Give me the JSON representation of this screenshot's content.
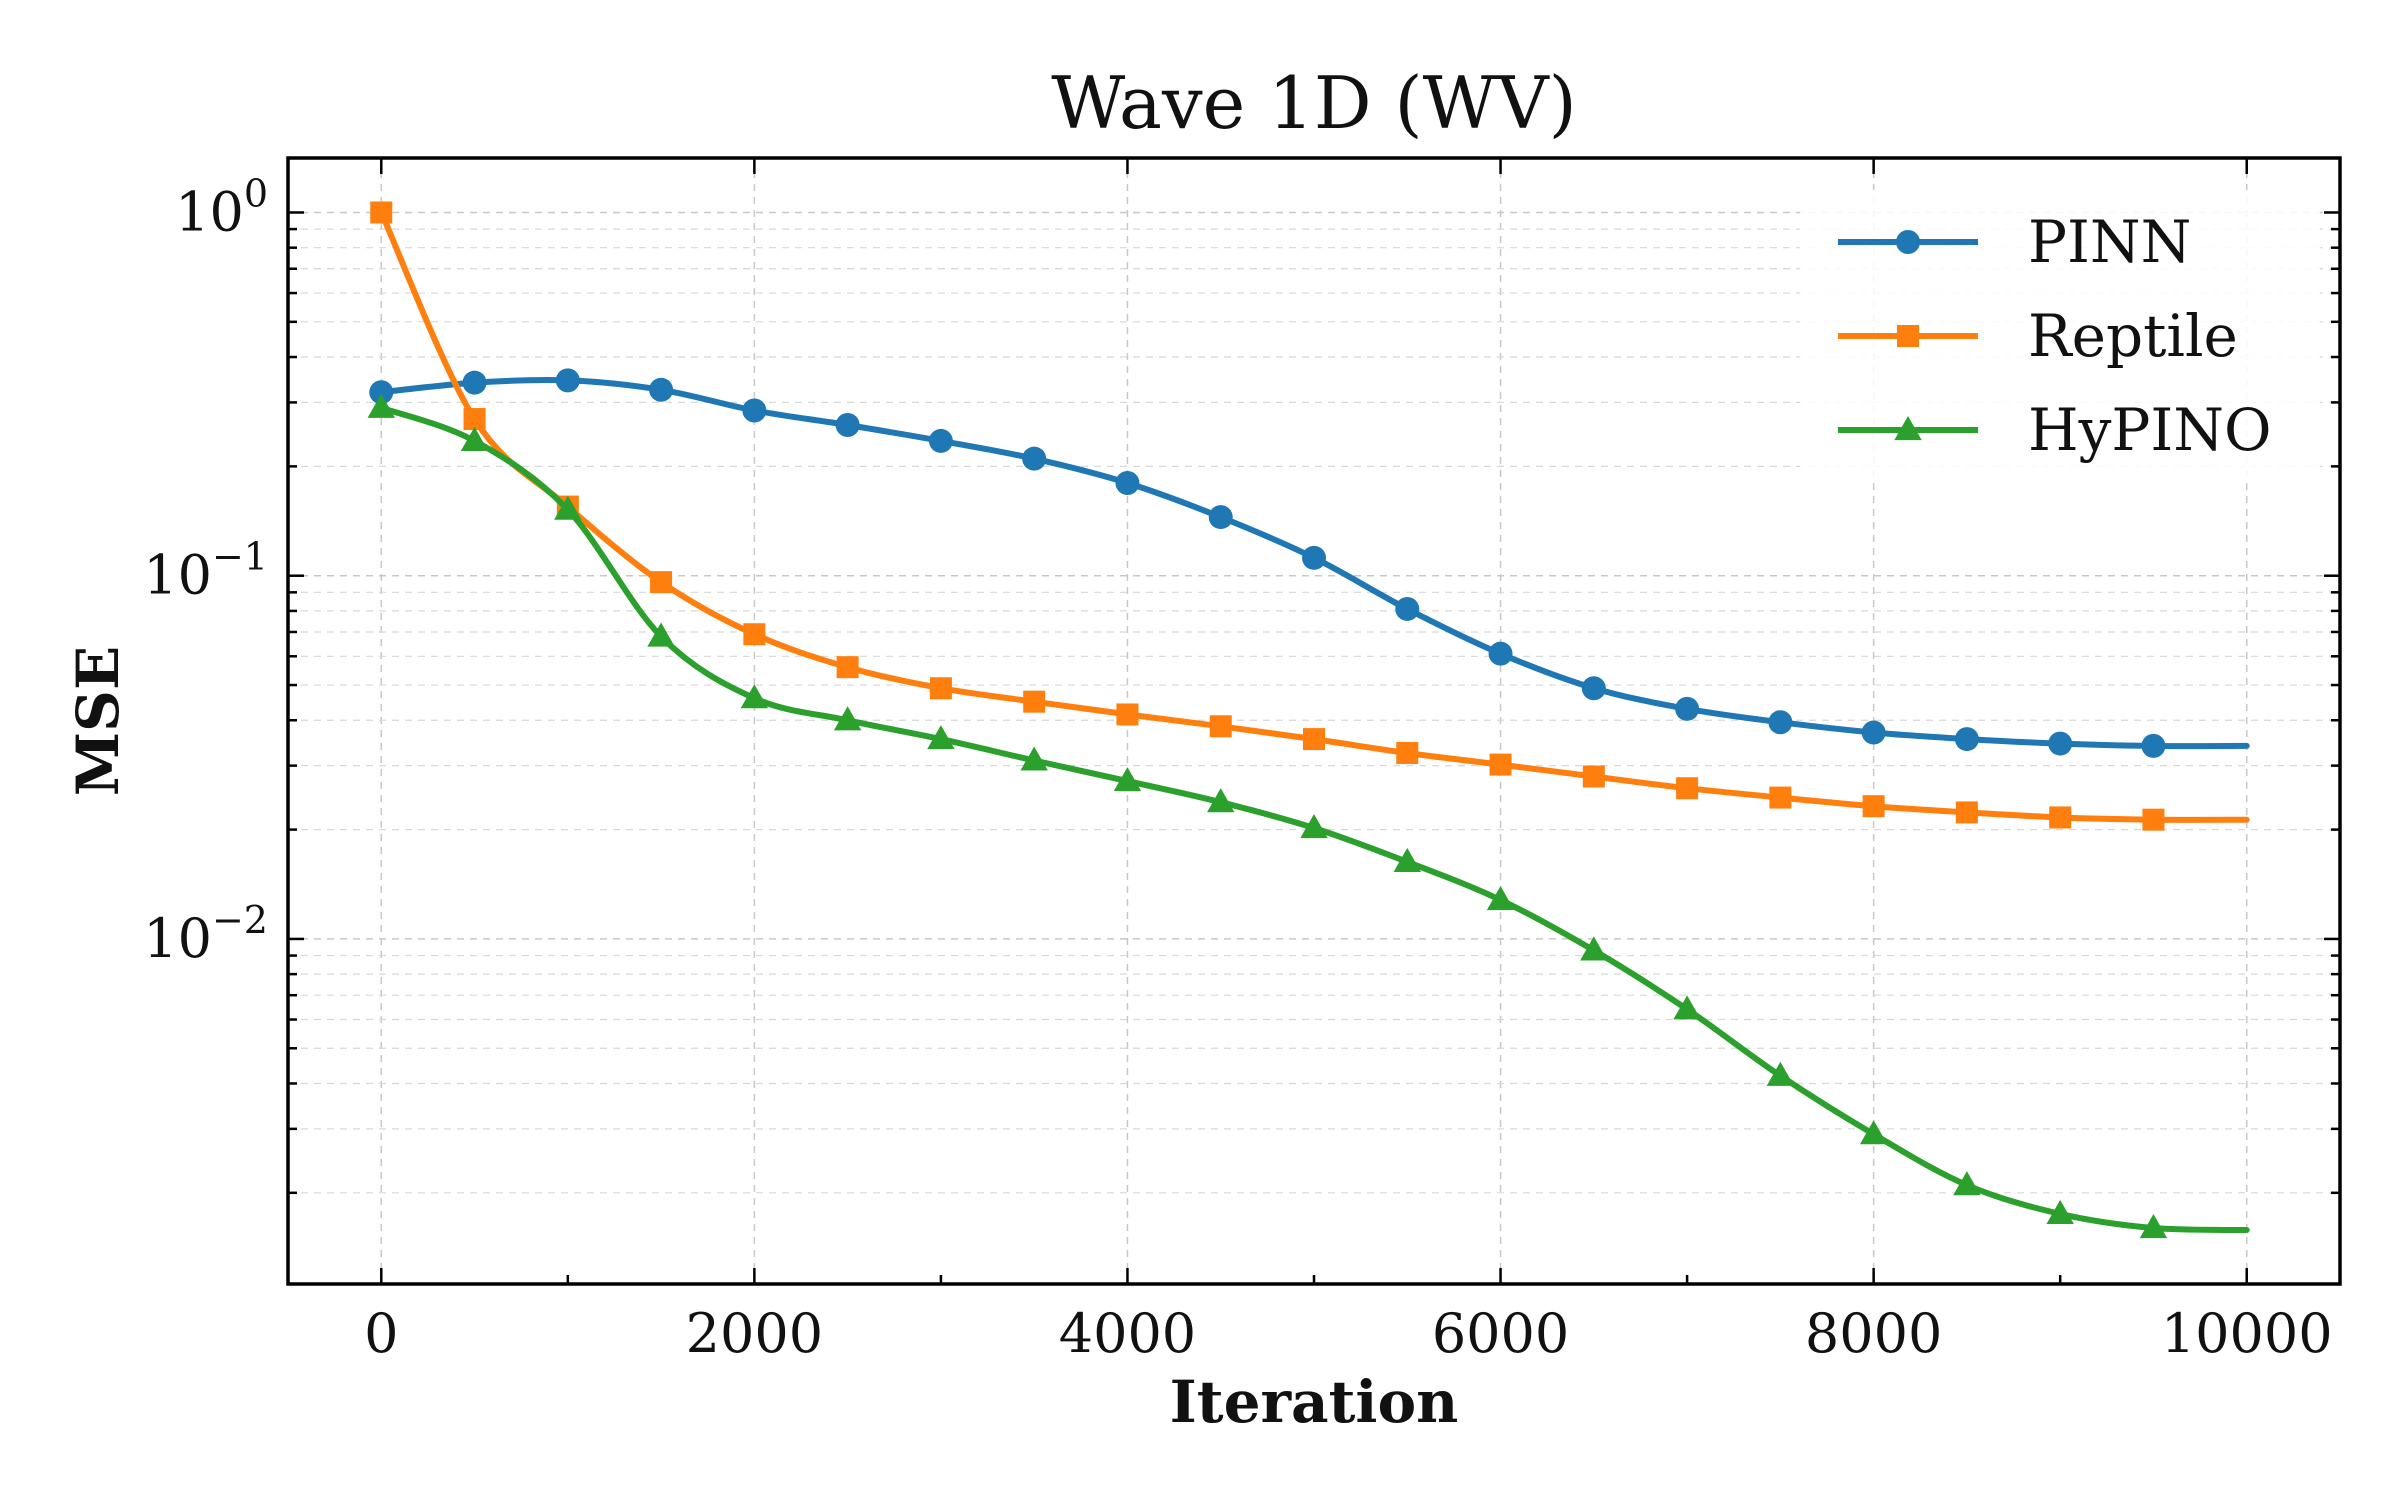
{
  "chart_data": {
    "type": "line",
    "title": "Wave 1D (WV)",
    "xlabel": "Iteration",
    "ylabel": "MSE",
    "xlim": [
      -500,
      10500
    ],
    "ylim_log10": [
      -2.95,
      0.15
    ],
    "yscale": "log",
    "grid": true,
    "legend_position": "top-right",
    "x_ticks": [
      0,
      2000,
      4000,
      6000,
      8000,
      10000
    ],
    "x_tick_labels": [
      "0",
      "2000",
      "4000",
      "6000",
      "8000",
      "10000"
    ],
    "y_ticks": [
      {
        "value": 1,
        "base": "10",
        "exp": "0"
      },
      {
        "value": 0.1,
        "base": "10",
        "exp": "−1"
      },
      {
        "value": 0.01,
        "base": "10",
        "exp": "−2"
      }
    ],
    "x": [
      0,
      500,
      1000,
      1500,
      2000,
      2500,
      3000,
      3500,
      4000,
      4500,
      5000,
      5500,
      6000,
      6500,
      7000,
      7500,
      8000,
      8500,
      9000,
      9500,
      10000
    ],
    "marker_count": 20,
    "series": [
      {
        "name": "PINN",
        "color": "#1f77b4",
        "marker": "circle",
        "values": [
          0.32,
          0.34,
          0.345,
          0.325,
          0.285,
          0.26,
          0.235,
          0.21,
          0.18,
          0.145,
          0.112,
          0.081,
          0.061,
          0.049,
          0.043,
          0.0395,
          0.037,
          0.0355,
          0.0345,
          0.034,
          0.034
        ]
      },
      {
        "name": "Reptile",
        "color": "#ff7f0e",
        "marker": "square",
        "values": [
          1.0,
          0.27,
          0.155,
          0.096,
          0.069,
          0.056,
          0.049,
          0.045,
          0.0415,
          0.0385,
          0.0355,
          0.0325,
          0.0302,
          0.028,
          0.026,
          0.0245,
          0.0232,
          0.0223,
          0.0216,
          0.0213,
          0.0213
        ]
      },
      {
        "name": "HyPINO",
        "color": "#2ca02c",
        "marker": "triangle",
        "values": [
          0.29,
          0.235,
          0.152,
          0.068,
          0.046,
          0.04,
          0.0355,
          0.031,
          0.0272,
          0.0238,
          0.0202,
          0.0163,
          0.0128,
          0.0093,
          0.0064,
          0.0042,
          0.0029,
          0.0021,
          0.00175,
          0.0016,
          0.00158
        ]
      }
    ]
  }
}
